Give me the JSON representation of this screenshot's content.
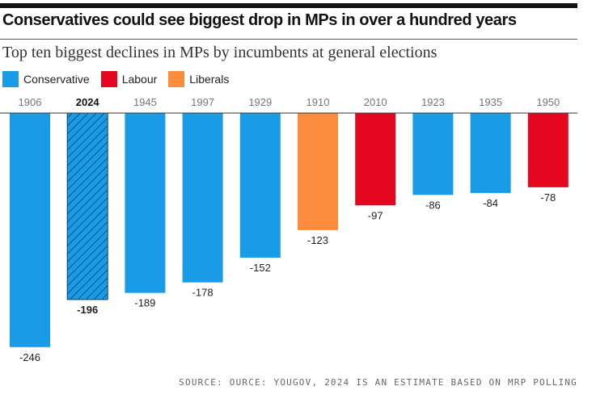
{
  "title": "Conservatives could see biggest drop in MPs in over a hundred years",
  "subtitle": "Top ten biggest declines in MPs by incumbents at general elections",
  "legend": [
    {
      "label": "Conservative",
      "color": "#1a9be8"
    },
    {
      "label": "Labour",
      "color": "#e4071f"
    },
    {
      "label": "Liberals",
      "color": "#fb8c3b"
    }
  ],
  "source": "SOURCE: OURCE: YOUGOV, 2024 IS AN ESTIMATE BASED ON MRP POLLING",
  "chart_data": {
    "type": "bar",
    "categories": [
      "1906",
      "2024",
      "1945",
      "1997",
      "1929",
      "1910",
      "2010",
      "1923",
      "1935",
      "1950"
    ],
    "values": [
      -246,
      -196,
      -189,
      -178,
      -152,
      -123,
      -97,
      -86,
      -84,
      -78
    ],
    "value_labels": [
      "-246",
      "-196",
      "-189",
      "-178",
      "-152",
      "-123",
      "-97",
      "-86",
      "-84",
      "-78"
    ],
    "party": [
      "Conservative",
      "Conservative",
      "Conservative",
      "Conservative",
      "Conservative",
      "Liberals",
      "Labour",
      "Conservative",
      "Conservative",
      "Labour"
    ],
    "highlighted": "2024",
    "highlight_pattern": "hatched",
    "ylim": [
      -250,
      0
    ],
    "grid": false,
    "legend_position": "top-left",
    "colors": {
      "Conservative": "#1a9be8",
      "Labour": "#e4071f",
      "Liberals": "#fb8c3b"
    }
  }
}
